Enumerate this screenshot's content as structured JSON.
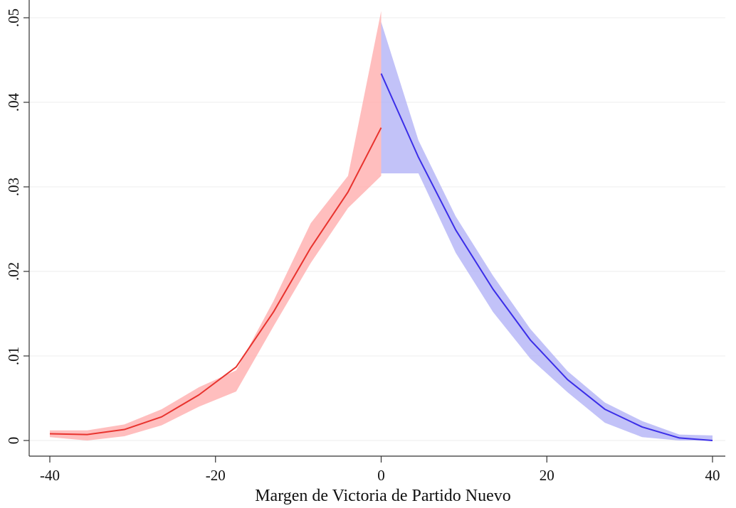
{
  "chart_data": {
    "type": "line",
    "title": "",
    "xlabel": "Margen de Victoria de Partido Nuevo",
    "ylabel": "",
    "xlim": [
      -40,
      40
    ],
    "ylim": [
      0,
      0.05
    ],
    "x_ticks": [
      -40,
      -20,
      0,
      20,
      40
    ],
    "x_tick_labels": [
      "-40",
      "-20",
      "0",
      "20",
      "40"
    ],
    "y_ticks": [
      0,
      0.01,
      0.02,
      0.03,
      0.04,
      0.05
    ],
    "y_tick_labels": [
      "0",
      ".01",
      ".02",
      ".03",
      ".04",
      ".05"
    ],
    "grid": "horizontal",
    "legend": "none",
    "series": [
      {
        "color": "#e8332e",
        "band_color": "#ffb3b3",
        "x": [
          -40,
          -35.5,
          -31,
          -26.5,
          -22,
          -17.5,
          -13,
          -8.5,
          -4,
          0
        ],
        "y": [
          0.0008,
          0.0007,
          0.0013,
          0.0028,
          0.0054,
          0.0087,
          0.0152,
          0.0228,
          0.0294,
          0.037
        ],
        "lower": [
          0.0004,
          0.0,
          0.0005,
          0.0018,
          0.004,
          0.0058,
          0.0135,
          0.021,
          0.0275,
          0.0313
        ],
        "upper": [
          0.0012,
          0.0012,
          0.0019,
          0.0037,
          0.0063,
          0.0083,
          0.0165,
          0.0257,
          0.0313,
          0.0508
        ]
      },
      {
        "color": "#3b2ee8",
        "band_color": "#b7b7f7",
        "x": [
          0,
          4.5,
          9,
          13.5,
          18,
          22.5,
          27,
          31.5,
          36,
          40
        ],
        "y": [
          0.0434,
          0.0335,
          0.0249,
          0.0179,
          0.0119,
          0.0072,
          0.0037,
          0.0016,
          0.0003,
          0.0
        ],
        "lower": [
          0.0316,
          0.0316,
          0.0222,
          0.0152,
          0.0097,
          0.0057,
          0.0021,
          0.0004,
          0.0,
          0.0
        ],
        "upper": [
          0.0495,
          0.0355,
          0.0265,
          0.0195,
          0.0132,
          0.0082,
          0.0045,
          0.0023,
          0.0007,
          0.0006
        ]
      }
    ]
  }
}
